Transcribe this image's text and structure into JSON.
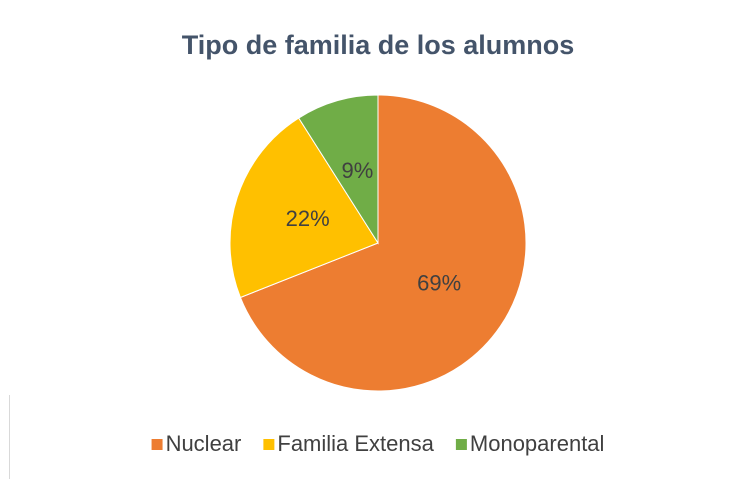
{
  "chart_data": {
    "type": "pie",
    "title": "Tipo de familia de los alumnos",
    "categories": [
      "Nuclear",
      "Familia Extensa",
      "Monoparental"
    ],
    "values": [
      69,
      22,
      9
    ],
    "value_labels": [
      "69%",
      "22%",
      "9%"
    ],
    "colors": [
      "#ED7D31",
      "#FFC000",
      "#70AD47"
    ],
    "legend": "bottom"
  }
}
